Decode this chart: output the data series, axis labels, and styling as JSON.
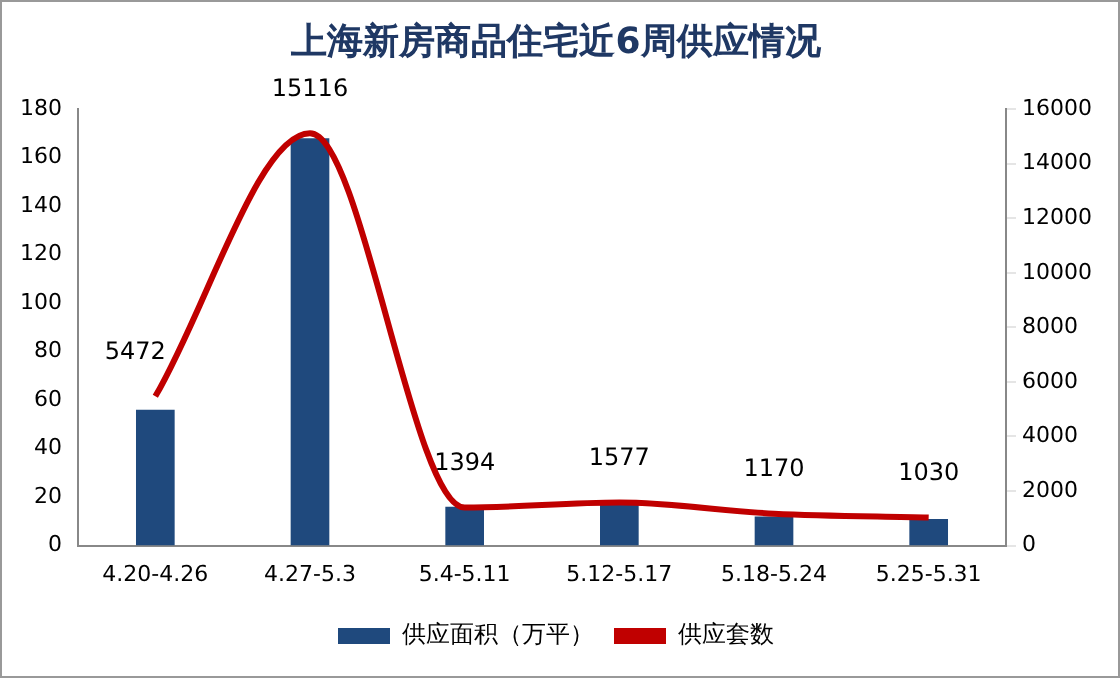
{
  "chart_data": {
    "type": "bar",
    "title": "上海新房商品住宅近6周供应情况",
    "categories": [
      "4.20-4.26",
      "4.27-5.3",
      "5.4-5.11",
      "5.12-5.17",
      "5.18-5.24",
      "5.25-5.31"
    ],
    "series": [
      {
        "name": "供应面积（万平）",
        "color": "#1f497d",
        "values": [
          56,
          168,
          16,
          17,
          12,
          11
        ]
      },
      {
        "name": "供应套数",
        "type": "line",
        "axis": "y2",
        "color": "#c00000",
        "marker": "none",
        "values": [
          5472,
          15116,
          1394,
          1577,
          1170,
          1030
        ],
        "value_labels": [
          "5472",
          "15116",
          "1394",
          "1577",
          "1170",
          "1030"
        ]
      }
    ],
    "ylim": [
      0,
      180
    ],
    "yticks": [
      0,
      20,
      40,
      60,
      80,
      100,
      120,
      140,
      160,
      180
    ],
    "y2lim": [
      0,
      16000
    ],
    "y2ticks": [
      0,
      2000,
      4000,
      6000,
      8000,
      10000,
      12000,
      14000,
      16000
    ],
    "grid": false,
    "legend": "bottom"
  }
}
